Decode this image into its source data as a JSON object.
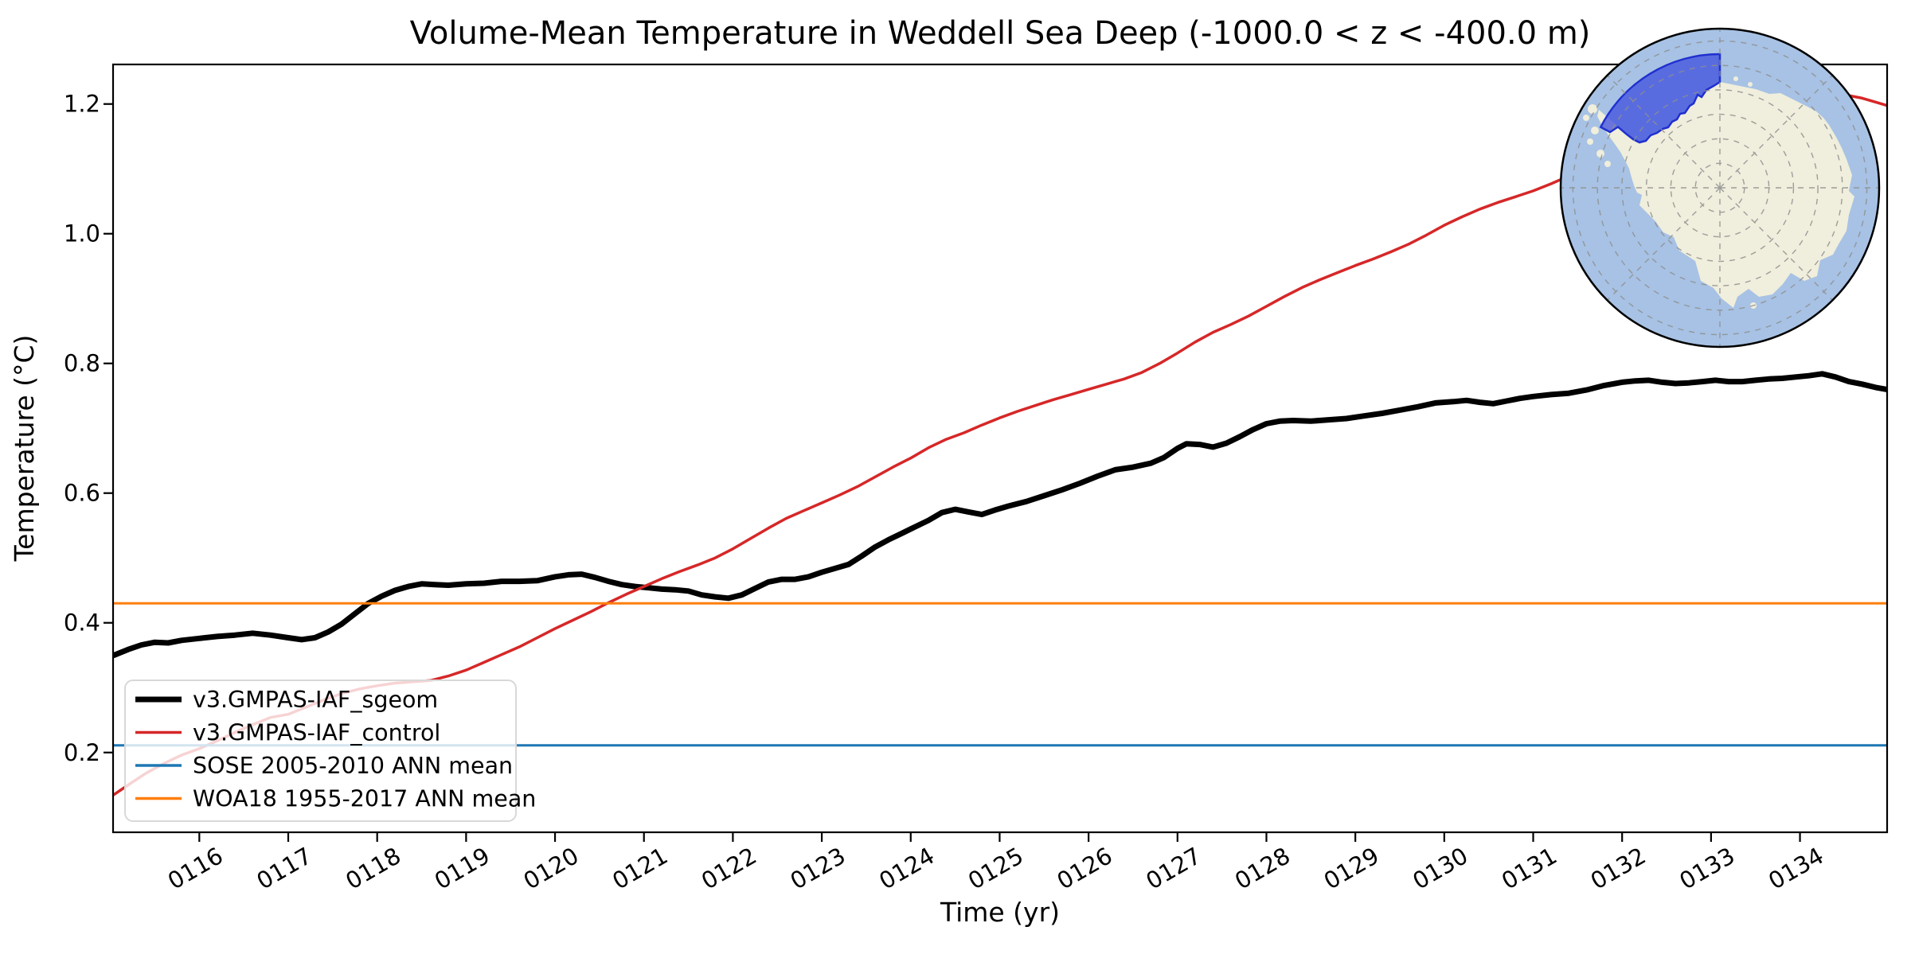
{
  "figure": {
    "background_color": "#ffffff"
  },
  "chart_data": {
    "type": "line",
    "title": "Volume-Mean Temperature in Weddell Sea Deep (-1000.0 < z < -400.0 m)",
    "xlabel": "Time (yr)",
    "ylabel": "Temperature (°C)",
    "xlim": [
      115.03,
      134.98
    ],
    "ylim": [
      0.077,
      1.261
    ],
    "grid": false,
    "legend_position": "lower left",
    "x_ticks": [
      {
        "t": 116,
        "label": "0116"
      },
      {
        "t": 117,
        "label": "0117"
      },
      {
        "t": 118,
        "label": "0118"
      },
      {
        "t": 119,
        "label": "0119"
      },
      {
        "t": 120,
        "label": "0120"
      },
      {
        "t": 121,
        "label": "0121"
      },
      {
        "t": 122,
        "label": "0122"
      },
      {
        "t": 123,
        "label": "0123"
      },
      {
        "t": 124,
        "label": "0124"
      },
      {
        "t": 125,
        "label": "0125"
      },
      {
        "t": 126,
        "label": "0126"
      },
      {
        "t": 127,
        "label": "0127"
      },
      {
        "t": 128,
        "label": "0128"
      },
      {
        "t": 129,
        "label": "0129"
      },
      {
        "t": 130,
        "label": "0130"
      },
      {
        "t": 131,
        "label": "0131"
      },
      {
        "t": 132,
        "label": "0132"
      },
      {
        "t": 133,
        "label": "0133"
      },
      {
        "t": 134,
        "label": "0134"
      }
    ],
    "y_ticks": [
      {
        "v": 0.2,
        "label": "0.2"
      },
      {
        "v": 0.4,
        "label": "0.4"
      },
      {
        "v": 0.6,
        "label": "0.6"
      },
      {
        "v": 0.8,
        "label": "0.8"
      },
      {
        "v": 1.0,
        "label": "1.0"
      },
      {
        "v": 1.2,
        "label": "1.2"
      }
    ],
    "series": [
      {
        "name": "v3.GMPAS-IAF_sgeom",
        "color": "#000000",
        "line_width": 7,
        "points": [
          [
            115.04,
            0.35
          ],
          [
            115.2,
            0.359
          ],
          [
            115.35,
            0.366
          ],
          [
            115.5,
            0.37
          ],
          [
            115.65,
            0.369
          ],
          [
            115.8,
            0.373
          ],
          [
            116.0,
            0.376
          ],
          [
            116.2,
            0.379
          ],
          [
            116.4,
            0.381
          ],
          [
            116.6,
            0.384
          ],
          [
            116.8,
            0.381
          ],
          [
            117.0,
            0.377
          ],
          [
            117.15,
            0.374
          ],
          [
            117.3,
            0.377
          ],
          [
            117.45,
            0.386
          ],
          [
            117.6,
            0.398
          ],
          [
            117.75,
            0.414
          ],
          [
            117.9,
            0.43
          ],
          [
            118.05,
            0.441
          ],
          [
            118.2,
            0.45
          ],
          [
            118.35,
            0.456
          ],
          [
            118.5,
            0.46
          ],
          [
            118.65,
            0.459
          ],
          [
            118.8,
            0.458
          ],
          [
            119.0,
            0.46
          ],
          [
            119.2,
            0.461
          ],
          [
            119.4,
            0.464
          ],
          [
            119.6,
            0.464
          ],
          [
            119.8,
            0.465
          ],
          [
            120.0,
            0.471
          ],
          [
            120.15,
            0.474
          ],
          [
            120.3,
            0.475
          ],
          [
            120.45,
            0.47
          ],
          [
            120.6,
            0.464
          ],
          [
            120.75,
            0.459
          ],
          [
            120.9,
            0.456
          ],
          [
            121.05,
            0.454
          ],
          [
            121.2,
            0.452
          ],
          [
            121.35,
            0.451
          ],
          [
            121.5,
            0.449
          ],
          [
            121.65,
            0.443
          ],
          [
            121.8,
            0.44
          ],
          [
            121.95,
            0.438
          ],
          [
            122.1,
            0.443
          ],
          [
            122.25,
            0.453
          ],
          [
            122.4,
            0.463
          ],
          [
            122.55,
            0.467
          ],
          [
            122.7,
            0.467
          ],
          [
            122.85,
            0.471
          ],
          [
            123.0,
            0.478
          ],
          [
            123.15,
            0.484
          ],
          [
            123.3,
            0.49
          ],
          [
            123.45,
            0.503
          ],
          [
            123.6,
            0.517
          ],
          [
            123.75,
            0.528
          ],
          [
            123.9,
            0.538
          ],
          [
            124.05,
            0.548
          ],
          [
            124.2,
            0.558
          ],
          [
            124.35,
            0.57
          ],
          [
            124.5,
            0.575
          ],
          [
            124.65,
            0.571
          ],
          [
            124.8,
            0.567
          ],
          [
            124.95,
            0.574
          ],
          [
            125.1,
            0.58
          ],
          [
            125.3,
            0.587
          ],
          [
            125.5,
            0.596
          ],
          [
            125.7,
            0.605
          ],
          [
            125.9,
            0.615
          ],
          [
            126.1,
            0.626
          ],
          [
            126.3,
            0.636
          ],
          [
            126.5,
            0.64
          ],
          [
            126.7,
            0.646
          ],
          [
            126.85,
            0.655
          ],
          [
            127.0,
            0.669
          ],
          [
            127.1,
            0.676
          ],
          [
            127.25,
            0.675
          ],
          [
            127.4,
            0.671
          ],
          [
            127.55,
            0.677
          ],
          [
            127.7,
            0.687
          ],
          [
            127.85,
            0.698
          ],
          [
            128.0,
            0.707
          ],
          [
            128.15,
            0.711
          ],
          [
            128.3,
            0.712
          ],
          [
            128.5,
            0.711
          ],
          [
            128.7,
            0.713
          ],
          [
            128.9,
            0.715
          ],
          [
            129.1,
            0.719
          ],
          [
            129.3,
            0.723
          ],
          [
            129.5,
            0.728
          ],
          [
            129.7,
            0.733
          ],
          [
            129.9,
            0.739
          ],
          [
            130.1,
            0.741
          ],
          [
            130.25,
            0.743
          ],
          [
            130.4,
            0.74
          ],
          [
            130.55,
            0.738
          ],
          [
            130.7,
            0.742
          ],
          [
            130.85,
            0.746
          ],
          [
            131.0,
            0.749
          ],
          [
            131.2,
            0.752
          ],
          [
            131.4,
            0.754
          ],
          [
            131.6,
            0.759
          ],
          [
            131.8,
            0.766
          ],
          [
            132.0,
            0.771
          ],
          [
            132.15,
            0.773
          ],
          [
            132.3,
            0.774
          ],
          [
            132.45,
            0.771
          ],
          [
            132.6,
            0.769
          ],
          [
            132.75,
            0.77
          ],
          [
            132.9,
            0.772
          ],
          [
            133.05,
            0.774
          ],
          [
            133.2,
            0.772
          ],
          [
            133.35,
            0.772
          ],
          [
            133.5,
            0.774
          ],
          [
            133.65,
            0.776
          ],
          [
            133.8,
            0.777
          ],
          [
            133.95,
            0.779
          ],
          [
            134.1,
            0.781
          ],
          [
            134.25,
            0.784
          ],
          [
            134.4,
            0.779
          ],
          [
            134.55,
            0.772
          ],
          [
            134.7,
            0.768
          ],
          [
            134.85,
            0.763
          ],
          [
            134.97,
            0.76
          ]
        ]
      },
      {
        "name": "v3.GMPAS-IAF_control",
        "color": "#d62728",
        "line_width": 3.5,
        "points": [
          [
            115.04,
            0.135
          ],
          [
            115.2,
            0.15
          ],
          [
            115.4,
            0.168
          ],
          [
            115.6,
            0.183
          ],
          [
            115.8,
            0.196
          ],
          [
            116.0,
            0.206
          ],
          [
            116.2,
            0.218
          ],
          [
            116.4,
            0.231
          ],
          [
            116.6,
            0.243
          ],
          [
            116.8,
            0.254
          ],
          [
            117.0,
            0.259
          ],
          [
            117.2,
            0.27
          ],
          [
            117.4,
            0.281
          ],
          [
            117.6,
            0.291
          ],
          [
            117.8,
            0.298
          ],
          [
            118.0,
            0.303
          ],
          [
            118.2,
            0.307
          ],
          [
            118.4,
            0.309
          ],
          [
            118.6,
            0.311
          ],
          [
            118.8,
            0.318
          ],
          [
            119.0,
            0.327
          ],
          [
            119.2,
            0.339
          ],
          [
            119.4,
            0.351
          ],
          [
            119.6,
            0.363
          ],
          [
            119.8,
            0.377
          ],
          [
            120.0,
            0.391
          ],
          [
            120.2,
            0.404
          ],
          [
            120.4,
            0.417
          ],
          [
            120.6,
            0.431
          ],
          [
            120.8,
            0.444
          ],
          [
            121.0,
            0.456
          ],
          [
            121.2,
            0.468
          ],
          [
            121.4,
            0.479
          ],
          [
            121.6,
            0.489
          ],
          [
            121.8,
            0.5
          ],
          [
            122.0,
            0.514
          ],
          [
            122.2,
            0.53
          ],
          [
            122.4,
            0.546
          ],
          [
            122.6,
            0.561
          ],
          [
            122.8,
            0.573
          ],
          [
            123.0,
            0.585
          ],
          [
            123.2,
            0.597
          ],
          [
            123.4,
            0.61
          ],
          [
            123.6,
            0.625
          ],
          [
            123.8,
            0.64
          ],
          [
            124.0,
            0.654
          ],
          [
            124.2,
            0.67
          ],
          [
            124.4,
            0.683
          ],
          [
            124.6,
            0.693
          ],
          [
            124.8,
            0.705
          ],
          [
            125.0,
            0.716
          ],
          [
            125.2,
            0.726
          ],
          [
            125.4,
            0.735
          ],
          [
            125.6,
            0.744
          ],
          [
            125.8,
            0.752
          ],
          [
            126.0,
            0.76
          ],
          [
            126.2,
            0.768
          ],
          [
            126.4,
            0.776
          ],
          [
            126.6,
            0.786
          ],
          [
            126.8,
            0.8
          ],
          [
            127.0,
            0.816
          ],
          [
            127.2,
            0.833
          ],
          [
            127.4,
            0.848
          ],
          [
            127.6,
            0.86
          ],
          [
            127.8,
            0.873
          ],
          [
            128.0,
            0.888
          ],
          [
            128.2,
            0.903
          ],
          [
            128.4,
            0.917
          ],
          [
            128.6,
            0.929
          ],
          [
            128.8,
            0.94
          ],
          [
            129.0,
            0.951
          ],
          [
            129.2,
            0.961
          ],
          [
            129.4,
            0.972
          ],
          [
            129.6,
            0.984
          ],
          [
            129.8,
            0.998
          ],
          [
            130.0,
            1.013
          ],
          [
            130.2,
            1.026
          ],
          [
            130.4,
            1.038
          ],
          [
            130.6,
            1.048
          ],
          [
            130.8,
            1.057
          ],
          [
            131.0,
            1.066
          ],
          [
            131.2,
            1.077
          ],
          [
            131.4,
            1.089
          ],
          [
            131.6,
            1.099
          ],
          [
            131.8,
            1.108
          ],
          [
            132.0,
            1.117
          ],
          [
            132.3,
            1.131
          ],
          [
            132.6,
            1.145
          ],
          [
            132.9,
            1.159
          ],
          [
            133.2,
            1.173
          ],
          [
            133.5,
            1.186
          ],
          [
            133.8,
            1.197
          ],
          [
            134.0,
            1.203
          ],
          [
            134.2,
            1.208
          ],
          [
            134.4,
            1.212
          ],
          [
            134.55,
            1.213
          ],
          [
            134.7,
            1.209
          ],
          [
            134.85,
            1.203
          ],
          [
            134.97,
            1.198
          ]
        ]
      },
      {
        "name": "SOSE 2005-2010 ANN mean",
        "color": "#1f77b4",
        "line_width": 3,
        "constant_value": 0.211
      },
      {
        "name": "WOA18 1955-2017 ANN mean",
        "color": "#ff7f0e",
        "line_width": 3,
        "constant_value": 0.43
      }
    ]
  },
  "inset_map": {
    "highlighted_region": "Weddell Sea",
    "colors": {
      "ocean": "#a7c2e4",
      "land": "#f0eedc",
      "region_fill": "#4353de",
      "region_edge": "#2030cf",
      "graticule": "#8f8f8f",
      "outline": "#000000"
    }
  }
}
